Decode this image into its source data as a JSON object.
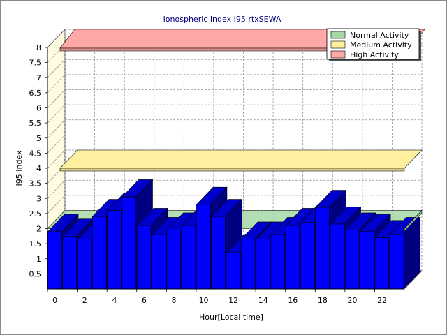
{
  "chart_data": {
    "type": "bar",
    "title": "Ionospheric Index I95 rtxSEWA",
    "xlabel": "Hour[Local time]",
    "ylabel": "I95 Index",
    "x_tick_labels": [
      "0",
      "2",
      "4",
      "6",
      "8",
      "10",
      "12",
      "14",
      "16",
      "18",
      "20",
      "22"
    ],
    "y_tick_labels": [
      "0.5",
      "1",
      "1.5",
      "2",
      "2.5",
      "3",
      "3.5",
      "4",
      "4.5",
      "5",
      "5.5",
      "6",
      "6.5",
      "7",
      "7.5",
      "8"
    ],
    "ylim": [
      0,
      8
    ],
    "hours": [
      0,
      1,
      2,
      3,
      4,
      5,
      6,
      7,
      8,
      9,
      10,
      11,
      12,
      13,
      14,
      15,
      16,
      17,
      18,
      19,
      20,
      21,
      22,
      23
    ],
    "values": [
      1.9,
      1.75,
      1.65,
      2.4,
      2.6,
      3.05,
      2.1,
      1.8,
      1.95,
      2.1,
      2.8,
      2.4,
      1.2,
      1.65,
      1.65,
      1.8,
      2.1,
      2.2,
      2.7,
      2.15,
      1.95,
      1.9,
      1.7,
      1.8
    ],
    "bar_color": "#0000ff",
    "bands": [
      {
        "name": "Normal Activity",
        "value": 2,
        "color": "#a6d8a6"
      },
      {
        "name": "Medium Activity",
        "value": 4,
        "color": "#fff0a0"
      },
      {
        "name": "High Activity",
        "value": 8,
        "color": "#ffa8a8"
      }
    ],
    "legend_position": "top-right",
    "grid": true
  }
}
